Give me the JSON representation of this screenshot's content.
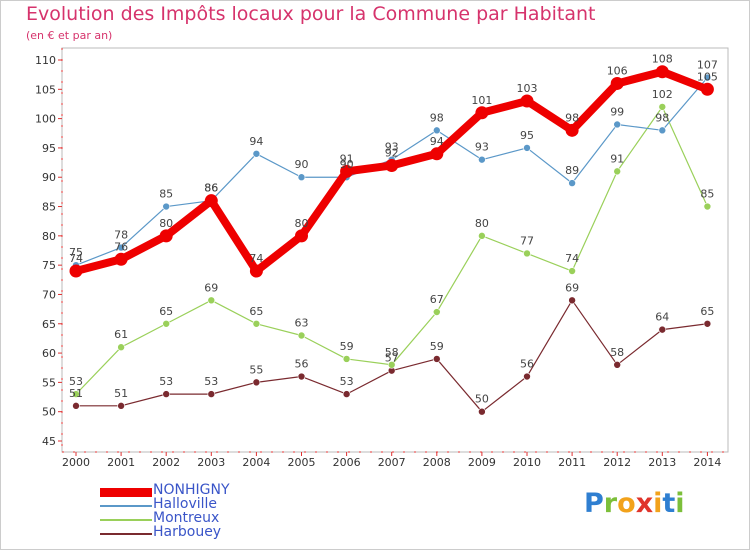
{
  "header": {
    "title": "Evolution des Impôts locaux pour la Commune par Habitant",
    "subtitle": "(en € et par an)"
  },
  "brand": {
    "letters": [
      "P",
      "r",
      "o",
      "x",
      "i",
      "t",
      "i"
    ],
    "colors": [
      "#2f7fd1",
      "#7cbf3a",
      "#f2a21b",
      "#e0342b",
      "#f2a21b",
      "#2f7fd1",
      "#7cbf3a"
    ]
  },
  "chart_data": {
    "type": "line",
    "title": "Evolution des Impôts locaux pour la Commune par Habitant",
    "subtitle": "(en € et par an)",
    "x": [
      "2000",
      "2001",
      "2002",
      "2003",
      "2004",
      "2005",
      "2006",
      "2007",
      "2008",
      "2009",
      "2010",
      "2011",
      "2012",
      "2013",
      "2014"
    ],
    "ylim": [
      45,
      110
    ],
    "yticks": [
      "45",
      "50",
      "55",
      "60",
      "65",
      "70",
      "75",
      "80",
      "85",
      "90",
      "95",
      "100",
      "105",
      "110"
    ],
    "grid": false,
    "legend_position": "bottom-left",
    "series": [
      {
        "name": "Harbouey",
        "color": "#7a2a2f",
        "values": [
          51,
          51,
          53,
          53,
          55,
          56,
          53,
          57,
          59,
          50,
          56,
          69,
          58,
          64,
          65
        ]
      },
      {
        "name": "Montreux",
        "color": "#9ad05a",
        "values": [
          53,
          61,
          65,
          69,
          65,
          63,
          59,
          58,
          67,
          80,
          77,
          74,
          91,
          102,
          85
        ]
      },
      {
        "name": "Halloville",
        "color": "#5b98c8",
        "values": [
          75,
          78,
          85,
          86,
          94,
          90,
          90,
          93,
          98,
          93,
          95,
          89,
          99,
          98,
          107
        ]
      },
      {
        "name": "NONHIGNY",
        "color": "#ee0000",
        "values": [
          74,
          76,
          80,
          86,
          74,
          80,
          91,
          92,
          94,
          101,
          103,
          98,
          106,
          108,
          105
        ]
      }
    ],
    "legend": [
      {
        "name": "NONHIGNY",
        "color": "#ee0000",
        "text_color": "#3a55c8"
      },
      {
        "name": "Halloville",
        "color": "#5b98c8",
        "text_color": "#3a55c8"
      },
      {
        "name": "Montreux",
        "color": "#9ad05a",
        "text_color": "#3a55c8"
      },
      {
        "name": "Harbouey",
        "color": "#7a2a2f",
        "text_color": "#3a55c8"
      }
    ]
  }
}
